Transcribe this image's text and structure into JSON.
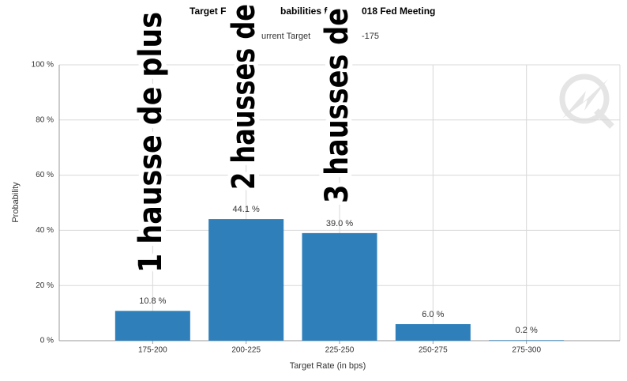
{
  "chart_data": {
    "type": "bar",
    "title_parts": [
      "Target F",
      "babilities for",
      "018 Fed Meeting"
    ],
    "subtitle_parts": [
      "urrent Target",
      "-175"
    ],
    "x_label": "Target Rate (in bps)",
    "y_label": "Probability",
    "categories": [
      "175-200",
      "200-225",
      "225-250",
      "250-275",
      "275-300"
    ],
    "values": [
      10.8,
      44.1,
      39.0,
      6.0,
      0.2
    ],
    "value_labels": [
      "10.8 %",
      "44.1 %",
      "39.0 %",
      "6.0 %",
      "0.2 %"
    ],
    "color": "#2e7fba",
    "ylim": [
      0,
      100
    ],
    "yticks": [
      {
        "value": 0,
        "label": "0 %"
      },
      {
        "value": 20,
        "label": "20 %"
      },
      {
        "value": 40,
        "label": "40 %"
      },
      {
        "value": 60,
        "label": "60 %"
      },
      {
        "value": 80,
        "label": "80 %"
      },
      {
        "value": 100,
        "label": "100 %"
      }
    ],
    "grid": true,
    "annotations": [
      "1 hausse de plus",
      "2 hausses de",
      "3 hausses de"
    ]
  }
}
